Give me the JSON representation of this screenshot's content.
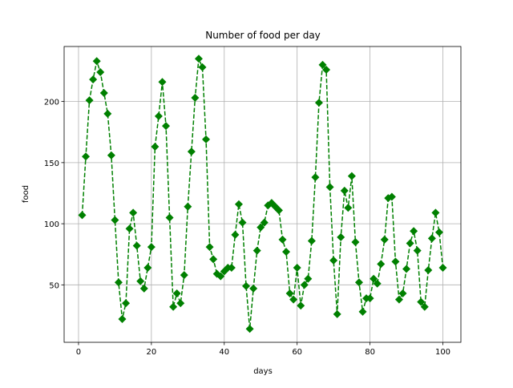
{
  "chart_data": {
    "type": "line",
    "title": "Number of food per day",
    "x_label": "days",
    "y_label": "food",
    "x": [
      1,
      2,
      3,
      4,
      5,
      6,
      7,
      8,
      9,
      10,
      11,
      12,
      13,
      14,
      15,
      16,
      17,
      18,
      19,
      20,
      21,
      22,
      23,
      24,
      25,
      26,
      27,
      28,
      29,
      30,
      31,
      32,
      33,
      34,
      35,
      36,
      37,
      38,
      39,
      40,
      41,
      42,
      43,
      44,
      45,
      46,
      47,
      48,
      49,
      50,
      51,
      52,
      53,
      54,
      55,
      56,
      57,
      58,
      59,
      60,
      61,
      62,
      63,
      64,
      65,
      66,
      67,
      68,
      69,
      70,
      71,
      72,
      73,
      74,
      75,
      76,
      77,
      78,
      79,
      80,
      81,
      82,
      83,
      84,
      85,
      86,
      87,
      88,
      89,
      90,
      91,
      92,
      93,
      94,
      95,
      96,
      97,
      98,
      99,
      100
    ],
    "series": [
      {
        "name": "food",
        "color": "#008000",
        "values": [
          107,
          155,
          201,
          218,
          233,
          224,
          207,
          190,
          156,
          103,
          52,
          22,
          35,
          96,
          109,
          82,
          53,
          47,
          64,
          81,
          163,
          188,
          216,
          180,
          105,
          32,
          43,
          35,
          58,
          114,
          159,
          203,
          235,
          228,
          169,
          81,
          71,
          59,
          57,
          61,
          64,
          64,
          91,
          116,
          101,
          49,
          14,
          47,
          78,
          97,
          101,
          115,
          117,
          114,
          111,
          87,
          77,
          43,
          38,
          64,
          33,
          50,
          55,
          86,
          138,
          199,
          230,
          226,
          130,
          70,
          26,
          89,
          127,
          113,
          139,
          85,
          52,
          28,
          39,
          39,
          55,
          51,
          67,
          87,
          121,
          122,
          69,
          38,
          43,
          63,
          84,
          94,
          78,
          36,
          32,
          62,
          88,
          109,
          93,
          64
        ]
      }
    ],
    "xlim": [
      -3.95,
      104.95
    ],
    "ylim": [
      3,
      245
    ],
    "xticks": [
      0,
      20,
      40,
      60,
      80,
      100
    ],
    "yticks": [
      50,
      100,
      150,
      200
    ],
    "grid": true
  }
}
